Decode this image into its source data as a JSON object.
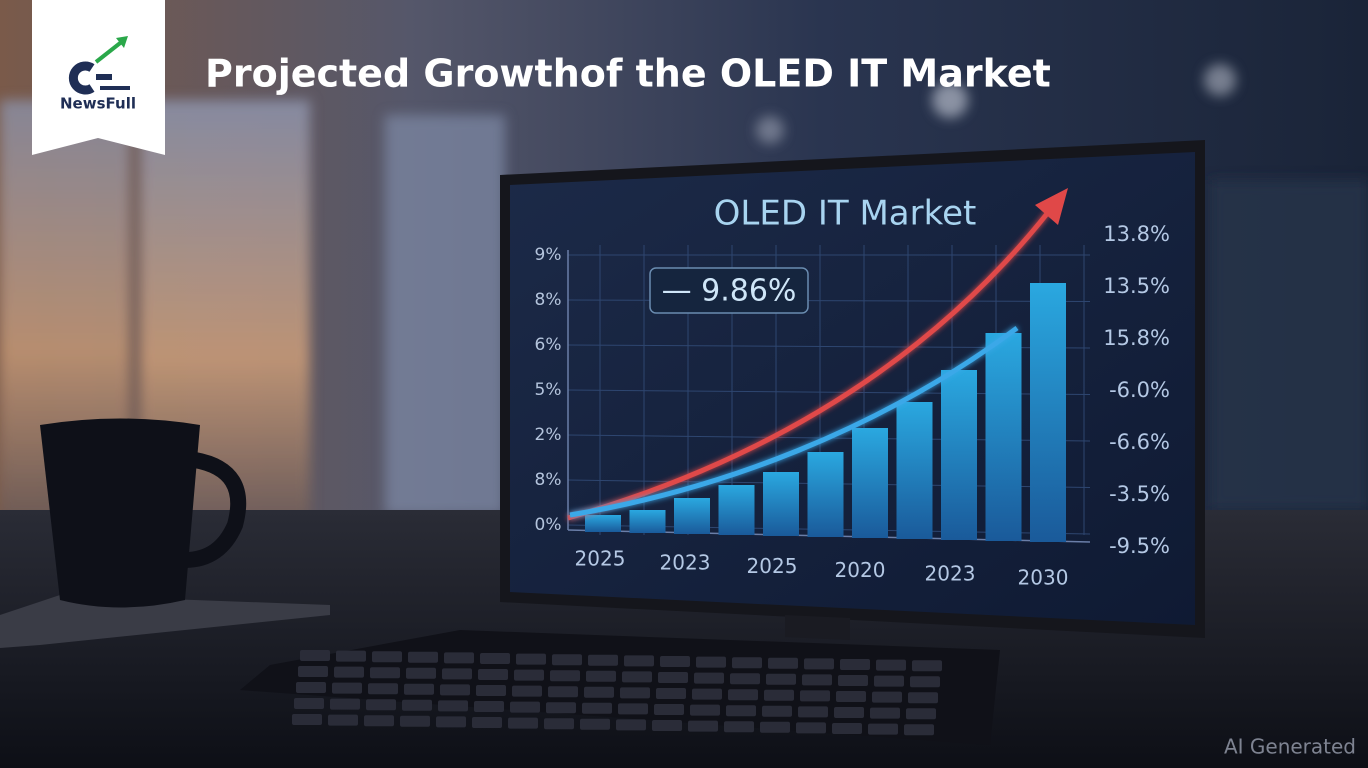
{
  "header": {
    "logo": "NewsFull",
    "title": "Projected Growthof the OLED IT Market"
  },
  "screen": {
    "title": "OLED IT Market",
    "badge": "— 9.86%",
    "left_labels": [
      "9%",
      "8%",
      "6%",
      "5%",
      "2%",
      "8%",
      "0%"
    ],
    "right_labels": [
      "13.8%",
      "13.5%",
      "15.8%",
      "-6.0%",
      "-6.6%",
      "-3.5%",
      "-9.5%"
    ],
    "x_labels": [
      "2025",
      "2023",
      "2025",
      "2020",
      "2023",
      "2030"
    ]
  },
  "watermark": "AI Generated"
}
